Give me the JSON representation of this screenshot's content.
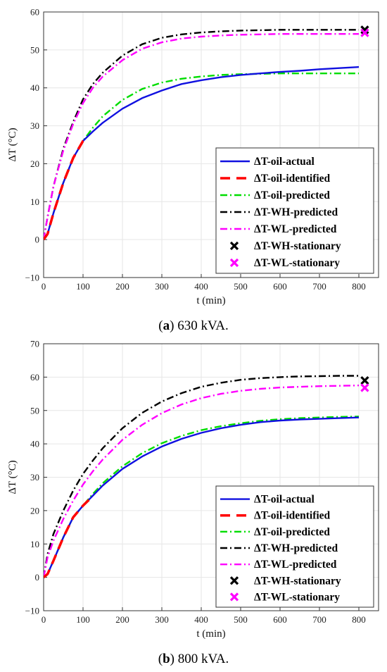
{
  "captions": [
    {
      "letter": "a",
      "text": " 630 kVA."
    },
    {
      "letter": "b",
      "text": " 800 kVA."
    }
  ],
  "colors": {
    "oil_actual": "#1010e0",
    "oil_identified": "#ff0000",
    "oil_predicted": "#00dd00",
    "wh_predicted": "#000000",
    "wl_predicted": "#ff00ff",
    "wh_stationary": "#000000",
    "wl_stationary": "#ff00ff",
    "grid": "#e6e6e6"
  },
  "chart_data": [
    {
      "type": "line",
      "xlabel": "t (min)",
      "ylabel": "ΔT (°C)",
      "xlim": [
        0,
        850
      ],
      "ylim": [
        -10,
        60
      ],
      "xticks": [
        0,
        100,
        200,
        300,
        400,
        500,
        600,
        700,
        800
      ],
      "yticks": [
        -10,
        0,
        10,
        20,
        30,
        40,
        50,
        60
      ],
      "grid": true,
      "legend_position": "bottom-right",
      "series": [
        {
          "name": "ΔT-oil-actual",
          "color": "#1010e0",
          "style": "solid",
          "x": [
            0,
            10,
            25,
            50,
            75,
            100,
            125,
            150,
            200,
            250,
            300,
            350,
            400,
            450,
            500,
            550,
            600,
            650,
            700,
            750,
            800
          ],
          "y": [
            0,
            1.5,
            7,
            15,
            21.5,
            26,
            28.5,
            30.8,
            34.5,
            37.3,
            39.3,
            41,
            42,
            42.8,
            43.4,
            43.8,
            44.2,
            44.5,
            44.9,
            45.2,
            45.5
          ]
        },
        {
          "name": "ΔT-oil-identified",
          "color": "#ff0000",
          "style": "dash",
          "x": [
            0,
            10,
            25,
            50,
            75,
            100,
            110
          ],
          "y": [
            0,
            1.5,
            7,
            15,
            21.5,
            26,
            27
          ]
        },
        {
          "name": "ΔT-oil-predicted",
          "color": "#00dd00",
          "style": "dashdot",
          "x": [
            0,
            10,
            25,
            50,
            75,
            100,
            125,
            150,
            200,
            250,
            300,
            350,
            400,
            450,
            500,
            550,
            600,
            650,
            700,
            750,
            800
          ],
          "y": [
            0,
            1.5,
            7,
            15,
            21.5,
            26,
            29.5,
            32.5,
            36.8,
            39.7,
            41.4,
            42.4,
            43,
            43.4,
            43.6,
            43.7,
            43.8,
            43.8,
            43.8,
            43.8,
            43.8
          ]
        },
        {
          "name": "ΔT-WH-predicted",
          "color": "#000000",
          "style": "dashdot",
          "x": [
            0,
            10,
            25,
            50,
            75,
            100,
            125,
            150,
            200,
            250,
            300,
            350,
            400,
            450,
            500,
            550,
            600,
            650,
            700,
            750,
            800
          ],
          "y": [
            0,
            6,
            14,
            24,
            31,
            37,
            41,
            44,
            48.5,
            51.5,
            53.2,
            54.1,
            54.6,
            54.9,
            55.1,
            55.2,
            55.3,
            55.3,
            55.3,
            55.3,
            55.3
          ]
        },
        {
          "name": "ΔT-WL-predicted",
          "color": "#ff00ff",
          "style": "dashdot",
          "x": [
            0,
            10,
            25,
            50,
            75,
            100,
            125,
            150,
            200,
            250,
            300,
            350,
            400,
            450,
            500,
            550,
            600,
            650,
            700,
            750,
            800
          ],
          "y": [
            0,
            6,
            14,
            23.5,
            30.5,
            36,
            40,
            43,
            47.3,
            50.3,
            52,
            53,
            53.5,
            53.8,
            54,
            54.1,
            54.2,
            54.2,
            54.2,
            54.2,
            54.2
          ]
        },
        {
          "name": "ΔT-WH-stationary",
          "color": "#000000",
          "style": "marker",
          "x": [
            815
          ],
          "y": [
            55.3
          ]
        },
        {
          "name": "ΔT-WL-stationary",
          "color": "#ff00ff",
          "style": "marker",
          "x": [
            815
          ],
          "y": [
            54.5
          ]
        }
      ]
    },
    {
      "type": "line",
      "xlabel": "t (min)",
      "ylabel": "ΔT (°C)",
      "xlim": [
        0,
        850
      ],
      "ylim": [
        -10,
        70
      ],
      "xticks": [
        0,
        100,
        200,
        300,
        400,
        500,
        600,
        700,
        800
      ],
      "yticks": [
        -10,
        0,
        10,
        20,
        30,
        40,
        50,
        60,
        70
      ],
      "grid": true,
      "legend_position": "bottom-right",
      "series": [
        {
          "name": "ΔT-oil-actual",
          "color": "#1010e0",
          "style": "solid",
          "x": [
            0,
            10,
            25,
            50,
            75,
            100,
            125,
            150,
            200,
            250,
            300,
            350,
            400,
            450,
            500,
            550,
            600,
            650,
            700,
            750,
            800
          ],
          "y": [
            0,
            1,
            5,
            12,
            18,
            21.5,
            24.5,
            27.5,
            32.5,
            36.2,
            39.2,
            41.5,
            43.3,
            44.7,
            45.7,
            46.5,
            47,
            47.3,
            47.5,
            47.7,
            47.9
          ]
        },
        {
          "name": "ΔT-oil-identified",
          "color": "#ff0000",
          "style": "dash",
          "x": [
            0,
            10,
            25,
            50,
            75,
            100,
            120
          ],
          "y": [
            0,
            1,
            5,
            12,
            18,
            21.5,
            23.8
          ]
        },
        {
          "name": "ΔT-oil-predicted",
          "color": "#00dd00",
          "style": "dashdot",
          "x": [
            0,
            10,
            25,
            50,
            75,
            100,
            125,
            150,
            200,
            250,
            300,
            350,
            400,
            450,
            500,
            550,
            600,
            650,
            700,
            750,
            800
          ],
          "y": [
            0,
            1,
            5,
            12,
            18,
            21.5,
            25,
            28.2,
            33.3,
            37.2,
            40.2,
            42.4,
            44.1,
            45.3,
            46.2,
            46.9,
            47.4,
            47.7,
            47.9,
            48.1,
            48.2
          ]
        },
        {
          "name": "ΔT-WH-predicted",
          "color": "#000000",
          "style": "dashdot",
          "x": [
            0,
            10,
            25,
            50,
            75,
            100,
            125,
            150,
            200,
            250,
            300,
            350,
            400,
            450,
            500,
            550,
            600,
            650,
            700,
            750,
            800
          ],
          "y": [
            0,
            7,
            13,
            20,
            26,
            31,
            35,
            38.7,
            44.7,
            49.3,
            52.7,
            55.2,
            57.1,
            58.3,
            59.2,
            59.7,
            60,
            60.2,
            60.3,
            60.4,
            60.4
          ]
        },
        {
          "name": "ΔT-WL-predicted",
          "color": "#ff00ff",
          "style": "dashdot",
          "x": [
            0,
            10,
            25,
            50,
            75,
            100,
            125,
            150,
            200,
            250,
            300,
            350,
            400,
            450,
            500,
            550,
            600,
            650,
            700,
            750,
            800
          ],
          "y": [
            0,
            6,
            11,
            17.5,
            23,
            27.8,
            31.8,
            35.3,
            41.2,
            45.7,
            49.2,
            51.8,
            53.7,
            55,
            55.9,
            56.5,
            56.9,
            57.1,
            57.3,
            57.4,
            57.5
          ]
        },
        {
          "name": "ΔT-WH-stationary",
          "color": "#000000",
          "style": "marker",
          "x": [
            815
          ],
          "y": [
            59
          ]
        },
        {
          "name": "ΔT-WL-stationary",
          "color": "#ff00ff",
          "style": "marker",
          "x": [
            815
          ],
          "y": [
            56.8
          ]
        }
      ]
    }
  ]
}
